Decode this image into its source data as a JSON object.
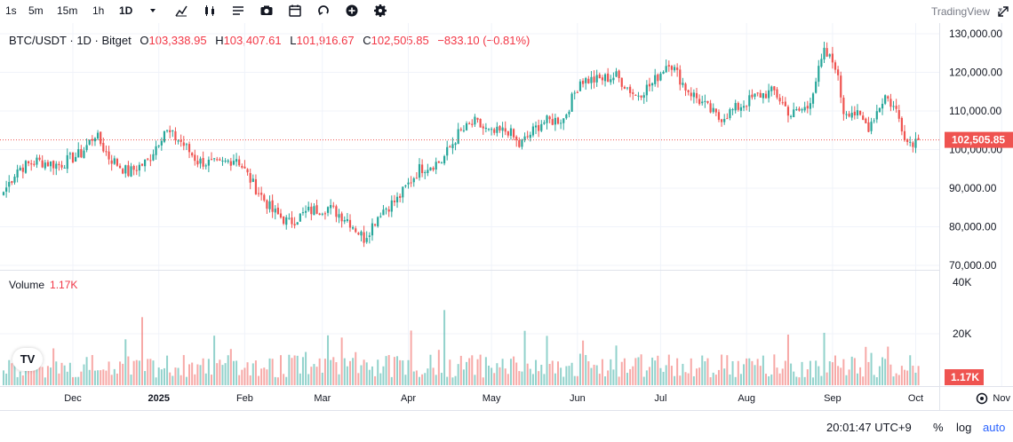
{
  "toolbar": {
    "timeframes": [
      "1s",
      "5m",
      "15m",
      "1h",
      "1D"
    ],
    "active_timeframe": "1D",
    "brand": "TradingView"
  },
  "legend": {
    "symbol": "BTC/USDT · 1D · Bitget",
    "open_label": "O",
    "open": "103,338.95",
    "high_label": "H",
    "high": "103,407.61",
    "low_label": "L",
    "low": "101,916.67",
    "close_label": "C",
    "close": "102,505.85",
    "change": "−833.10 (−0.81%)"
  },
  "volume_legend": {
    "label": "Volume",
    "value": "1.17K"
  },
  "logo_text": "TV",
  "bottom_bar": {
    "clock": "20:01:47 UTC+9",
    "percent": "%",
    "log": "log",
    "auto": "auto"
  },
  "colors": {
    "up": "#26a69a",
    "down": "#ef5350",
    "text": "#131722",
    "muted": "#787b86",
    "accent": "#2962ff"
  },
  "chart_data": {
    "type": "candlestick",
    "title": "BTC/USDT · 1D · Bitget",
    "price_axis": {
      "ticks": [
        70000,
        80000,
        90000,
        100000,
        110000,
        120000,
        130000
      ],
      "tick_labels": [
        "70,000.00",
        "80,000.00",
        "90,000.00",
        "100,000.00",
        "110,000.00",
        "120,000.00",
        "130,000.00"
      ],
      "range": [
        70000,
        130000
      ]
    },
    "volume_axis": {
      "ticks": [
        20000,
        40000
      ],
      "tick_labels": [
        "20K",
        "40K"
      ]
    },
    "time_axis": {
      "labels": [
        "Dec",
        "2025",
        "Feb",
        "Mar",
        "Apr",
        "May",
        "Jun",
        "Jul",
        "Aug",
        "Sep",
        "Oct",
        "Nov"
      ],
      "label_days": [
        25,
        56,
        87,
        115,
        146,
        176,
        207,
        237,
        268,
        299,
        329,
        360
      ]
    },
    "last_price": 102505.85,
    "last_price_label": "102,505.85",
    "last_volume_label": "1.17K",
    "anchors_day_close": [
      [
        0,
        89000
      ],
      [
        5,
        95000
      ],
      [
        12,
        97000
      ],
      [
        20,
        96000
      ],
      [
        28,
        99000
      ],
      [
        33,
        104000
      ],
      [
        38,
        98000
      ],
      [
        45,
        94000
      ],
      [
        52,
        97000
      ],
      [
        58,
        105000
      ],
      [
        64,
        102000
      ],
      [
        70,
        97000
      ],
      [
        78,
        96000
      ],
      [
        84,
        98000
      ],
      [
        90,
        91000
      ],
      [
        97,
        84000
      ],
      [
        103,
        81000
      ],
      [
        110,
        84000
      ],
      [
        117,
        85000
      ],
      [
        124,
        82000
      ],
      [
        130,
        77000
      ],
      [
        136,
        84000
      ],
      [
        142,
        87000
      ],
      [
        150,
        95000
      ],
      [
        158,
        97000
      ],
      [
        164,
        104000
      ],
      [
        170,
        107000
      ],
      [
        176,
        104000
      ],
      [
        182,
        105000
      ],
      [
        186,
        101000
      ],
      [
        194,
        107000
      ],
      [
        202,
        108000
      ],
      [
        208,
        118000
      ],
      [
        214,
        118000
      ],
      [
        221,
        119000
      ],
      [
        228,
        114000
      ],
      [
        234,
        117000
      ],
      [
        240,
        123000
      ],
      [
        246,
        116000
      ],
      [
        252,
        112000
      ],
      [
        258,
        108000
      ],
      [
        265,
        111000
      ],
      [
        272,
        114000
      ],
      [
        278,
        115000
      ],
      [
        284,
        109000
      ],
      [
        290,
        111000
      ],
      [
        296,
        125000
      ],
      [
        300,
        122000
      ],
      [
        303,
        110000
      ],
      [
        306,
        110000
      ],
      [
        312,
        106000
      ],
      [
        318,
        114000
      ],
      [
        322,
        110000
      ],
      [
        326,
        102000
      ],
      [
        330,
        102500
      ]
    ]
  }
}
